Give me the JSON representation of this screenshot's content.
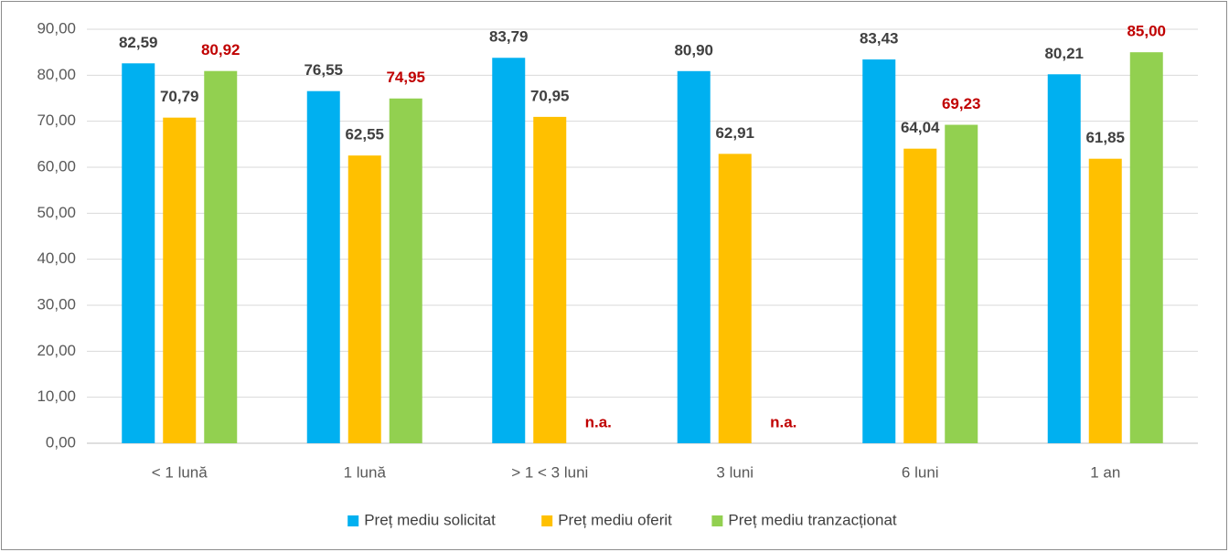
{
  "chart_data": {
    "type": "bar",
    "categories": [
      "< 1 lună",
      "1 lună",
      "> 1 < 3 luni",
      "3 luni",
      "6 luni",
      "1 an"
    ],
    "series": [
      {
        "name": "Preț mediu solicitat",
        "color": "#00b0f0",
        "label_color": "#404040",
        "values": [
          82.59,
          76.55,
          83.79,
          80.9,
          83.43,
          80.21
        ],
        "value_labels": [
          "82,59",
          "76,55",
          "83,79",
          "80,90",
          "83,43",
          "80,21"
        ]
      },
      {
        "name": "Preț mediu oferit",
        "color": "#ffc000",
        "label_color": "#404040",
        "values": [
          70.79,
          62.55,
          70.95,
          62.91,
          64.04,
          61.85
        ],
        "value_labels": [
          "70,79",
          "62,55",
          "70,95",
          "62,91",
          "64,04",
          "61,85"
        ]
      },
      {
        "name": "Preț mediu tranzacționat",
        "color": "#92d050",
        "label_color": "#c00000",
        "values": [
          80.92,
          74.95,
          null,
          null,
          69.23,
          85.0
        ],
        "value_labels": [
          "80,92",
          "74,95",
          "n.a.",
          "n.a.",
          "69,23",
          "85,00"
        ]
      }
    ],
    "ylim": [
      0,
      90
    ],
    "yticks": [
      {
        "value": 0,
        "label": "0,00"
      },
      {
        "value": 10,
        "label": "10,00"
      },
      {
        "value": 20,
        "label": "20,00"
      },
      {
        "value": 30,
        "label": "30,00"
      },
      {
        "value": 40,
        "label": "40,00"
      },
      {
        "value": 50,
        "label": "50,00"
      },
      {
        "value": 60,
        "label": "60,00"
      },
      {
        "value": 70,
        "label": "70,00"
      },
      {
        "value": 80,
        "label": "80,00"
      },
      {
        "value": 90,
        "label": "90,00"
      }
    ],
    "grid": true,
    "legend": "bottom"
  }
}
